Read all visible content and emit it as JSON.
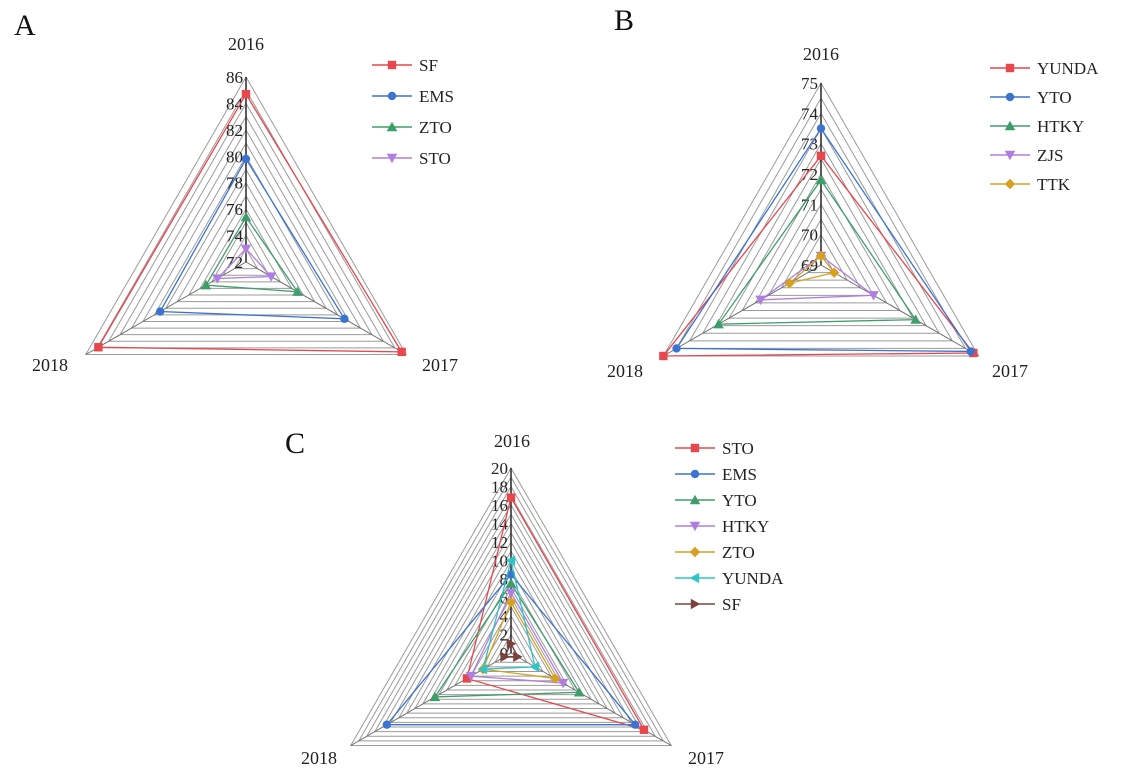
{
  "chart_data": [
    {
      "type": "radar",
      "panel_label": "A",
      "axes": [
        "2016",
        "2017",
        "2018"
      ],
      "rlim": [
        72,
        86
      ],
      "ticks": [
        "72",
        "74",
        "76",
        "78",
        "80",
        "82",
        "84",
        "86"
      ],
      "grid": true,
      "legend_position": "top-right",
      "series": [
        {
          "name": "SF",
          "values": [
            84.7,
            85.6,
            84.9
          ],
          "color": "#e8474d",
          "marker": "square"
        },
        {
          "name": "EMS",
          "values": [
            79.8,
            80.6,
            79.5
          ],
          "color": "#3b73d1",
          "marker": "circle"
        },
        {
          "name": "ZTO",
          "values": [
            75.4,
            76.5,
            75.5
          ],
          "color": "#3d9e6a",
          "marker": "triangle-up"
        },
        {
          "name": "STO",
          "values": [
            73.0,
            74.2,
            74.5
          ],
          "color": "#b07ee0",
          "marker": "triangle-down"
        }
      ]
    },
    {
      "type": "radar",
      "panel_label": "B",
      "axes": [
        "2016",
        "2017",
        "2018"
      ],
      "rlim": [
        69,
        75
      ],
      "ticks": [
        "69",
        "70",
        "71",
        "72",
        "73",
        "74",
        "75"
      ],
      "grid": true,
      "legend_position": "top-right",
      "series": [
        {
          "name": "YUNDA",
          "values": [
            72.6,
            74.8,
            75.0
          ],
          "color": "#e8474d",
          "marker": "square"
        },
        {
          "name": "YTO",
          "values": [
            73.5,
            74.7,
            74.5
          ],
          "color": "#3b73d1",
          "marker": "circle"
        },
        {
          "name": "HTKY",
          "values": [
            71.8,
            72.6,
            72.9
          ],
          "color": "#3d9e6a",
          "marker": "triangle-up"
        },
        {
          "name": "ZJS",
          "values": [
            69.3,
            71.0,
            71.3
          ],
          "color": "#b07ee0",
          "marker": "triangle-down"
        },
        {
          "name": "TTK",
          "values": [
            69.3,
            69.5,
            70.2
          ],
          "color": "#d6a21e",
          "marker": "diamond"
        }
      ]
    },
    {
      "type": "radar",
      "panel_label": "C",
      "axes": [
        "2016",
        "2017",
        "2018"
      ],
      "rlim": [
        0,
        20
      ],
      "ticks": [
        "0",
        "2",
        "4",
        "6",
        "8",
        "10",
        "12",
        "14",
        "16",
        "18",
        "20"
      ],
      "grid": true,
      "legend_position": "top-right",
      "series": [
        {
          "name": "STO",
          "values": [
            16.8,
            16.6,
            5.5
          ],
          "color": "#e8474d",
          "marker": "square"
        },
        {
          "name": "EMS",
          "values": [
            8.5,
            15.5,
            15.5
          ],
          "color": "#3b73d1",
          "marker": "circle"
        },
        {
          "name": "YTO",
          "values": [
            7.5,
            8.5,
            9.5
          ],
          "color": "#3d9e6a",
          "marker": "triangle-up"
        },
        {
          "name": "HTKY",
          "values": [
            6.5,
            6.5,
            5.0
          ],
          "color": "#b07ee0",
          "marker": "triangle-down"
        },
        {
          "name": "ZTO",
          "values": [
            5.5,
            5.5,
            3.5
          ],
          "color": "#d6a21e",
          "marker": "diamond"
        },
        {
          "name": "YUNDA",
          "values": [
            10.0,
            3.0,
            3.5
          ],
          "color": "#2ec4c8",
          "marker": "triangle-left"
        },
        {
          "name": "SF",
          "values": [
            1.0,
            0.8,
            0.8
          ],
          "color": "#7a4238",
          "marker": "triangle-right"
        }
      ]
    }
  ]
}
